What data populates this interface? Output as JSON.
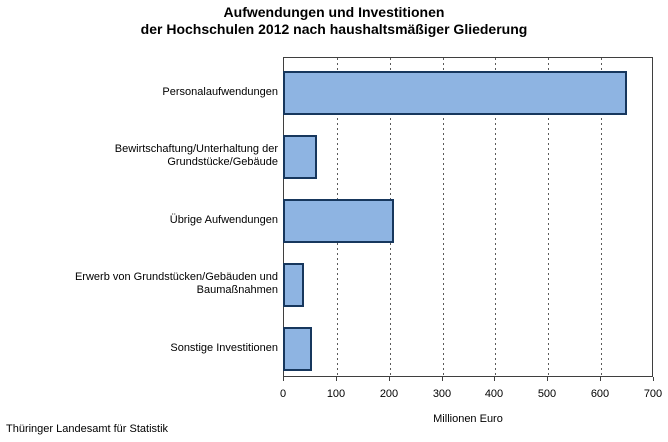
{
  "title": {
    "line1": "Aufwendungen und Investitionen",
    "line2": "der Hochschulen 2012 nach haushaltsmäßiger Gliederung"
  },
  "footer": {
    "source": "Thüringer Landesamt für Statistik"
  },
  "colors": {
    "bar_fill": "#8EB4E2",
    "bar_border": "#17375D",
    "plot_border": "#3f3f3f",
    "gridline": "#5a5a5a"
  },
  "chart_data": {
    "type": "bar",
    "orientation": "horizontal",
    "title": "Aufwendungen und Investitionen der Hochschulen 2012 nach haushaltsmäßiger Gliederung",
    "categories": [
      "Personalaufwendungen",
      "Bewirtschaftung/Unterhaltung der\nGrundstücke/Gebäude",
      "Übrige Aufwendungen",
      "Erwerb von Grundstücken/Gebäuden und\nBaumaßnahmen",
      "Sonstige Investitionen"
    ],
    "values": [
      650,
      65,
      210,
      40,
      55
    ],
    "xlabel": "Millionen Euro",
    "ylabel": "",
    "xlim": [
      0,
      700
    ],
    "xticks": [
      0,
      100,
      200,
      300,
      400,
      500,
      600,
      700
    ],
    "grid": "vertical-dashed",
    "legend": "none"
  }
}
